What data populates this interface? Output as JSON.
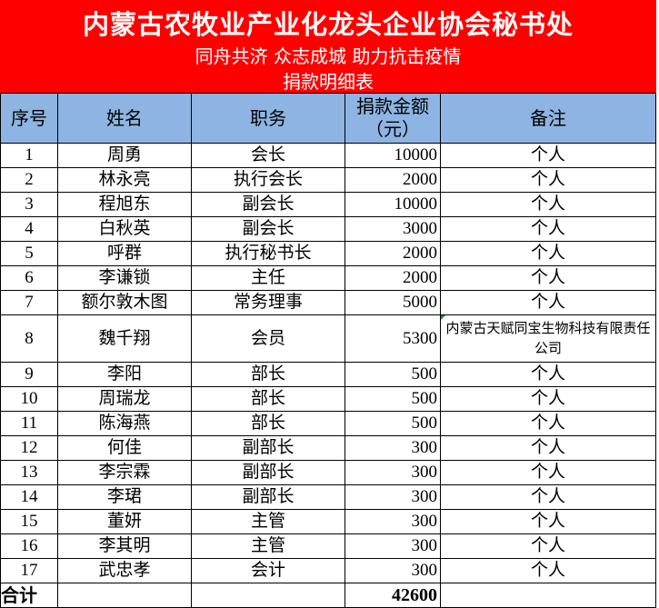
{
  "header": {
    "title": "内蒙古农牧业产业化龙头企业协会秘书处",
    "slogan": "同舟共济  众志成城  助力抗击疫情",
    "subtitle": "捐款明细表"
  },
  "colors": {
    "banner": "#fe0000",
    "header_row": "#8db4e2"
  },
  "table": {
    "columns": [
      "序号",
      "姓名",
      "职务",
      "捐款金额\n（元）",
      "备注"
    ],
    "rows": [
      {
        "no": "1",
        "name": "周勇",
        "role": "会长",
        "amount": "10000",
        "note": "个人"
      },
      {
        "no": "2",
        "name": "林永亮",
        "role": "执行会长",
        "amount": "2000",
        "note": "个人"
      },
      {
        "no": "3",
        "name": "程旭东",
        "role": "副会长",
        "amount": "10000",
        "note": "个人"
      },
      {
        "no": "4",
        "name": "白秋英",
        "role": "副会长",
        "amount": "3000",
        "note": "个人"
      },
      {
        "no": "5",
        "name": "呼群",
        "role": "执行秘书长",
        "amount": "2000",
        "note": "个人"
      },
      {
        "no": "6",
        "name": "李谦锁",
        "role": "主任",
        "amount": "2000",
        "note": "个人"
      },
      {
        "no": "7",
        "name": "额尔敦木图",
        "role": "常务理事",
        "amount": "5000",
        "note": "个人"
      },
      {
        "no": "8",
        "name": "魏千翔",
        "role": "会员",
        "amount": "5300",
        "note": "内蒙古天赋同宝生物科技有限责任公司"
      },
      {
        "no": "9",
        "name": "李阳",
        "role": "部长",
        "amount": "500",
        "note": "个人"
      },
      {
        "no": "10",
        "name": "周瑞龙",
        "role": "部长",
        "amount": "500",
        "note": "个人"
      },
      {
        "no": "11",
        "name": "陈海燕",
        "role": "部长",
        "amount": "500",
        "note": "个人"
      },
      {
        "no": "12",
        "name": "何佳",
        "role": "副部长",
        "amount": "300",
        "note": "个人"
      },
      {
        "no": "13",
        "name": "李宗霖",
        "role": "副部长",
        "amount": "300",
        "note": "个人"
      },
      {
        "no": "14",
        "name": "李珺",
        "role": "副部长",
        "amount": "300",
        "note": "个人"
      },
      {
        "no": "15",
        "name": "董妍",
        "role": "主管",
        "amount": "300",
        "note": "个人"
      },
      {
        "no": "16",
        "name": "李其明",
        "role": "主管",
        "amount": "300",
        "note": "个人"
      },
      {
        "no": "17",
        "name": "武忠孝",
        "role": "会计",
        "amount": "300",
        "note": "个人"
      }
    ],
    "total_label": "合计",
    "total_amount": "42600"
  }
}
